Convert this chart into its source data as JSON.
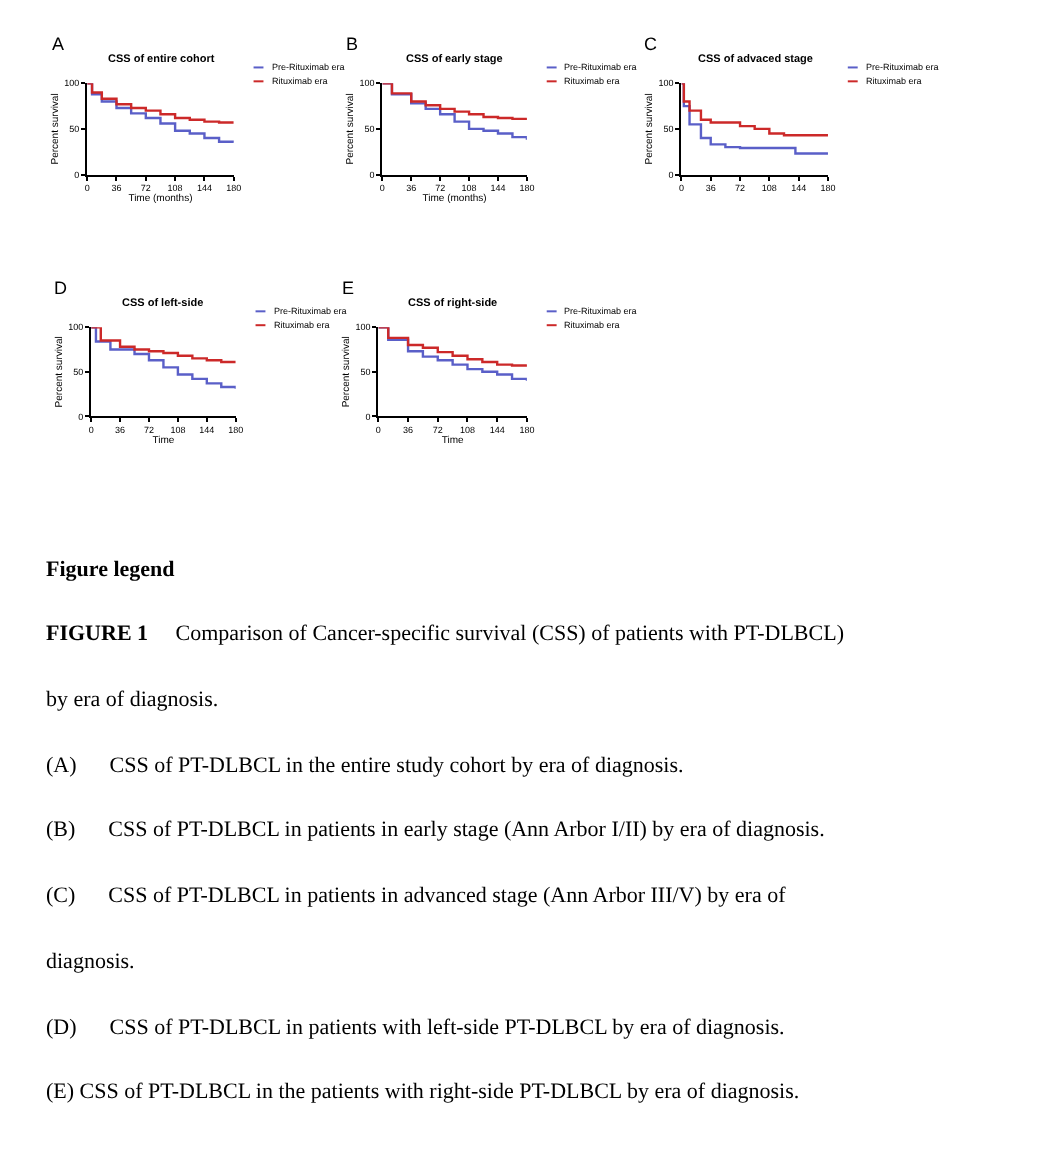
{
  "chart_data": [
    {
      "type": "step",
      "title": "CSS of entire cohort",
      "xlabel": "Time (months)",
      "ylabel": "Percent survival",
      "annotations": [
        "A"
      ],
      "xlim": [
        0,
        180
      ],
      "xticks": [
        0,
        36,
        72,
        108,
        144,
        180
      ],
      "ylim": [
        0,
        100
      ],
      "yticks": [
        0,
        50,
        100
      ],
      "legend": "right",
      "series": [
        {
          "name": "Pre-Rituximab era",
          "color": "#5a5fc8",
          "x": [
            0,
            6,
            18,
            36,
            54,
            72,
            90,
            108,
            126,
            144,
            162,
            180
          ],
          "values": [
            100,
            88,
            80,
            73,
            67,
            62,
            56,
            48,
            45,
            40,
            36,
            35
          ]
        },
        {
          "name": "Rituximab era",
          "color": "#cc2929",
          "x": [
            0,
            6,
            18,
            36,
            54,
            72,
            90,
            108,
            126,
            144,
            162,
            180
          ],
          "values": [
            100,
            90,
            83,
            77,
            73,
            70,
            66,
            62,
            60,
            58,
            57,
            57
          ]
        }
      ]
    },
    {
      "type": "step",
      "title": "CSS of early stage",
      "xlabel": "Time (months)",
      "ylabel": "Percent survival",
      "annotations": [
        "B"
      ],
      "xlim": [
        0,
        180
      ],
      "xticks": [
        0,
        36,
        72,
        108,
        144,
        180
      ],
      "ylim": [
        0,
        100
      ],
      "yticks": [
        0,
        50,
        100
      ],
      "legend": "right",
      "series": [
        {
          "name": "Pre-Rituximab era",
          "color": "#5a5fc8",
          "x": [
            0,
            12,
            36,
            54,
            72,
            90,
            108,
            126,
            144,
            162,
            180
          ],
          "values": [
            100,
            88,
            78,
            72,
            66,
            58,
            50,
            48,
            45,
            41,
            38
          ]
        },
        {
          "name": "Rituximab era",
          "color": "#cc2929",
          "x": [
            0,
            12,
            36,
            54,
            72,
            90,
            108,
            126,
            144,
            162,
            180
          ],
          "values": [
            100,
            89,
            80,
            76,
            72,
            69,
            66,
            63,
            62,
            61,
            62
          ]
        }
      ]
    },
    {
      "type": "step",
      "title": "CSS of advaced stage",
      "ylabel": "Percent survival",
      "annotations": [
        "C"
      ],
      "xlim": [
        0,
        180
      ],
      "xticks": [
        0,
        36,
        72,
        108,
        144,
        180
      ],
      "ylim": [
        0,
        100
      ],
      "yticks": [
        0,
        50,
        100
      ],
      "legend": "right",
      "series": [
        {
          "name": "Pre-Rituximab era",
          "color": "#5a5fc8",
          "x": [
            0,
            3,
            10,
            24,
            36,
            54,
            72,
            108,
            126,
            140,
            180
          ],
          "values": [
            100,
            75,
            55,
            40,
            33,
            30,
            29,
            29,
            29,
            23,
            23
          ]
        },
        {
          "name": "Rituximab era",
          "color": "#cc2929",
          "x": [
            0,
            3,
            10,
            24,
            36,
            54,
            72,
            90,
            108,
            126,
            144,
            180
          ],
          "values": [
            100,
            80,
            70,
            60,
            57,
            57,
            53,
            50,
            45,
            43,
            43,
            43
          ]
        }
      ]
    },
    {
      "type": "step",
      "title": "CSS of left-side",
      "xlabel": "Time",
      "ylabel": "Percent survival",
      "annotations": [
        "D"
      ],
      "xlim": [
        0,
        180
      ],
      "xticks": [
        0,
        36,
        72,
        108,
        144,
        180
      ],
      "ylim": [
        0,
        100
      ],
      "yticks": [
        0,
        50,
        100
      ],
      "legend": "right",
      "series": [
        {
          "name": "Pre-Rituximab era",
          "color": "#5a5fc8",
          "x": [
            0,
            6,
            24,
            54,
            72,
            90,
            108,
            126,
            144,
            162,
            180
          ],
          "values": [
            100,
            84,
            75,
            70,
            63,
            55,
            47,
            42,
            37,
            33,
            31
          ]
        },
        {
          "name": "Rituximab era",
          "color": "#cc2929",
          "x": [
            0,
            12,
            36,
            54,
            72,
            90,
            108,
            126,
            144,
            162,
            180
          ],
          "values": [
            100,
            85,
            78,
            75,
            73,
            71,
            68,
            65,
            63,
            61,
            61
          ]
        }
      ]
    },
    {
      "type": "step",
      "title": "CSS of right-side",
      "xlabel": "Time",
      "ylabel": "Percent survival",
      "annotations": [
        "E"
      ],
      "xlim": [
        0,
        180
      ],
      "xticks": [
        0,
        36,
        72,
        108,
        144,
        180
      ],
      "ylim": [
        0,
        100
      ],
      "yticks": [
        0,
        50,
        100
      ],
      "legend": "right",
      "series": [
        {
          "name": "Pre-Rituximab era",
          "color": "#5a5fc8",
          "x": [
            0,
            12,
            36,
            54,
            72,
            90,
            108,
            126,
            144,
            162,
            180
          ],
          "values": [
            100,
            86,
            73,
            67,
            63,
            58,
            53,
            50,
            47,
            42,
            40
          ]
        },
        {
          "name": "Rituximab era",
          "color": "#cc2929",
          "x": [
            0,
            12,
            36,
            54,
            72,
            90,
            108,
            126,
            144,
            162,
            180
          ],
          "values": [
            100,
            88,
            80,
            77,
            72,
            68,
            64,
            61,
            58,
            57,
            58
          ]
        }
      ]
    },
    {
      "type": "other",
      "title": "Figure legend",
      "annotations": [
        "FIGURE 1     Comparison of Cancer-specific survival (CSS) of patients with PT-DLBCL)",
        "by era of diagnosis.",
        "(A)      CSS of PT-DLBCL in the entire study cohort by era of diagnosis.",
        "(B)      CSS of PT-DLBCL in patients in early stage (Ann Arbor I/II) by era of diagnosis.",
        "(C)      CSS of PT-DLBCL in patients in advanced stage (Ann Arbor III/V) by era of",
        "diagnosis.",
        "(D)      CSS of PT-DLBCL in patients with left-side PT-DLBCL by era of diagnosis.",
        "(E) CSS of PT-DLBCL in the patients with right-side PT-DLBCL by era of diagnosis."
      ]
    }
  ]
}
